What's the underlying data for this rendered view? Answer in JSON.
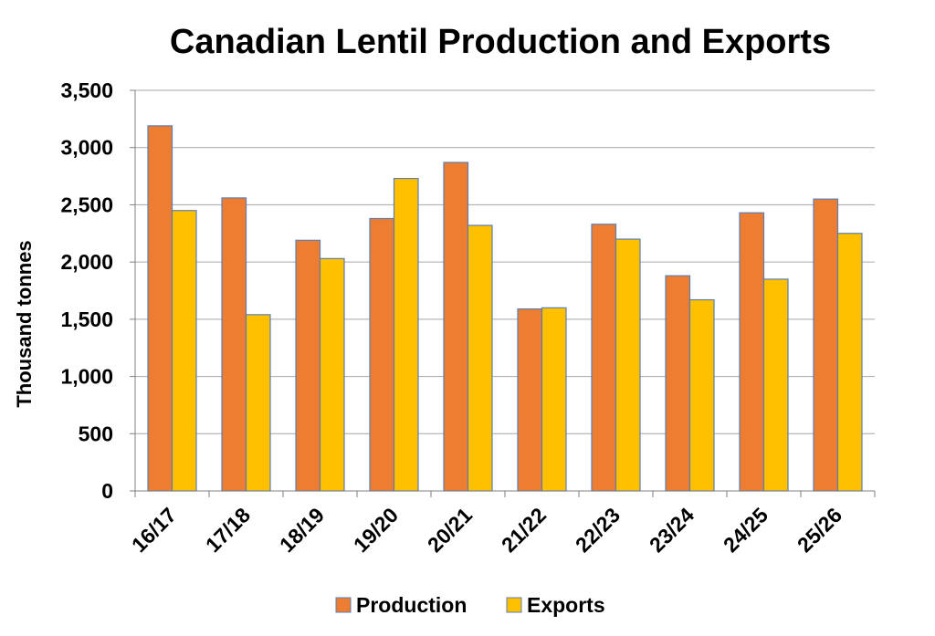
{
  "chart_data": {
    "type": "bar",
    "title": "Canadian Lentil Production and Exports",
    "xlabel": "",
    "ylabel": "Thousand tonnes",
    "ylim": [
      0,
      3500
    ],
    "yticks": [
      0,
      500,
      1000,
      1500,
      2000,
      2500,
      3000,
      3500
    ],
    "ytick_labels": [
      "0",
      "500",
      "1,000",
      "1,500",
      "2,000",
      "2,500",
      "3,000",
      "3,500"
    ],
    "grid": true,
    "legend_position": "bottom",
    "categories": [
      "16/17",
      "17/18",
      "18/19",
      "19/20",
      "20/21",
      "21/22",
      "22/23",
      "23/24",
      "24/25",
      "25/26"
    ],
    "series": [
      {
        "name": "Production",
        "color": "#ED7D31",
        "values": [
          3190,
          2560,
          2190,
          2380,
          2870,
          1590,
          2330,
          1880,
          2430,
          2550
        ]
      },
      {
        "name": "Exports",
        "color": "#FFC000",
        "values": [
          2450,
          1540,
          2030,
          2730,
          2320,
          1600,
          2200,
          1670,
          1850,
          2250
        ]
      }
    ]
  }
}
